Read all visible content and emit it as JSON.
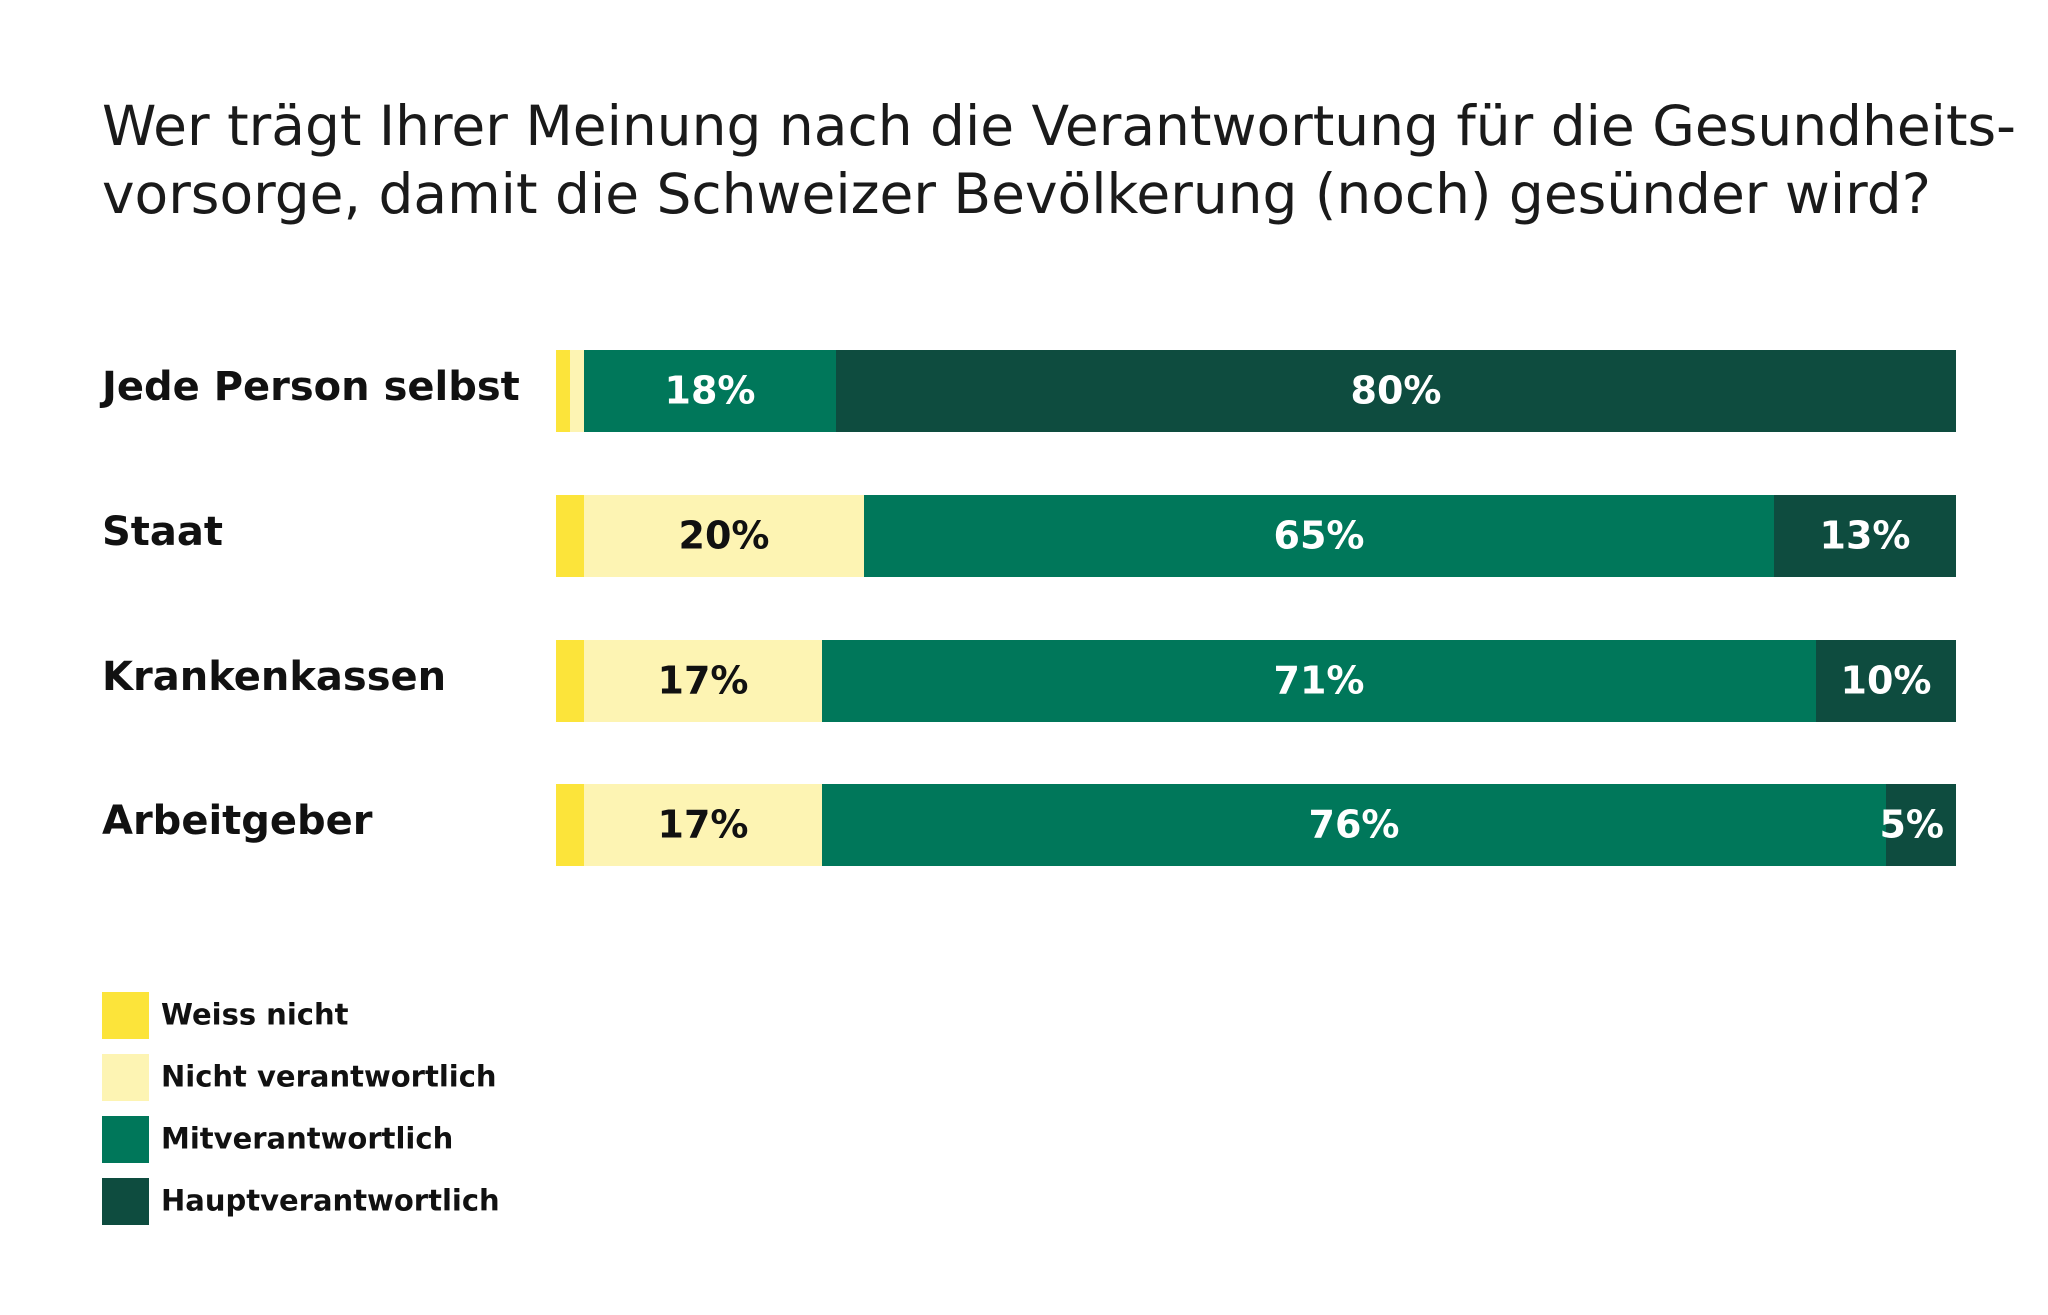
{
  "chart_data": {
    "type": "bar",
    "orientation": "horizontal",
    "stacked": true,
    "title_lines": [
      "Wer trägt Ihrer Meinung nach die Verantwortung für die Gesundheits-",
      "vorsorge, damit die Schweizer Bevölkerung (noch) gesünder wird?"
    ],
    "categories": [
      "Jede Person selbst",
      "Staat",
      "Krankenkassen",
      "Arbeitgeber"
    ],
    "series": [
      {
        "name": "Weiss nicht",
        "color": "#fce43a",
        "label_color": "#111111",
        "values": [
          1,
          2,
          2,
          2
        ],
        "labels": [
          "",
          "",
          "",
          ""
        ]
      },
      {
        "name": "Nicht verantwortlich",
        "color": "#fdf4b3",
        "label_color": "#111111",
        "values": [
          1,
          20,
          17,
          17
        ],
        "labels": [
          "",
          "20%",
          "17%",
          "17%"
        ]
      },
      {
        "name": "Mitverantwortlich",
        "color": "#00775a",
        "label_color": "#ffffff",
        "values": [
          18,
          65,
          71,
          76
        ],
        "labels": [
          "18%",
          "65%",
          "71%",
          "76%"
        ]
      },
      {
        "name": "Hauptverantwortlich",
        "color": "#0e4c3f",
        "label_color": "#ffffff",
        "values": [
          80,
          13,
          10,
          5
        ],
        "labels": [
          "80%",
          "13%",
          "10%",
          "5%"
        ]
      }
    ],
    "xlim": [
      0,
      100
    ],
    "legend_position": "bottom-left"
  }
}
